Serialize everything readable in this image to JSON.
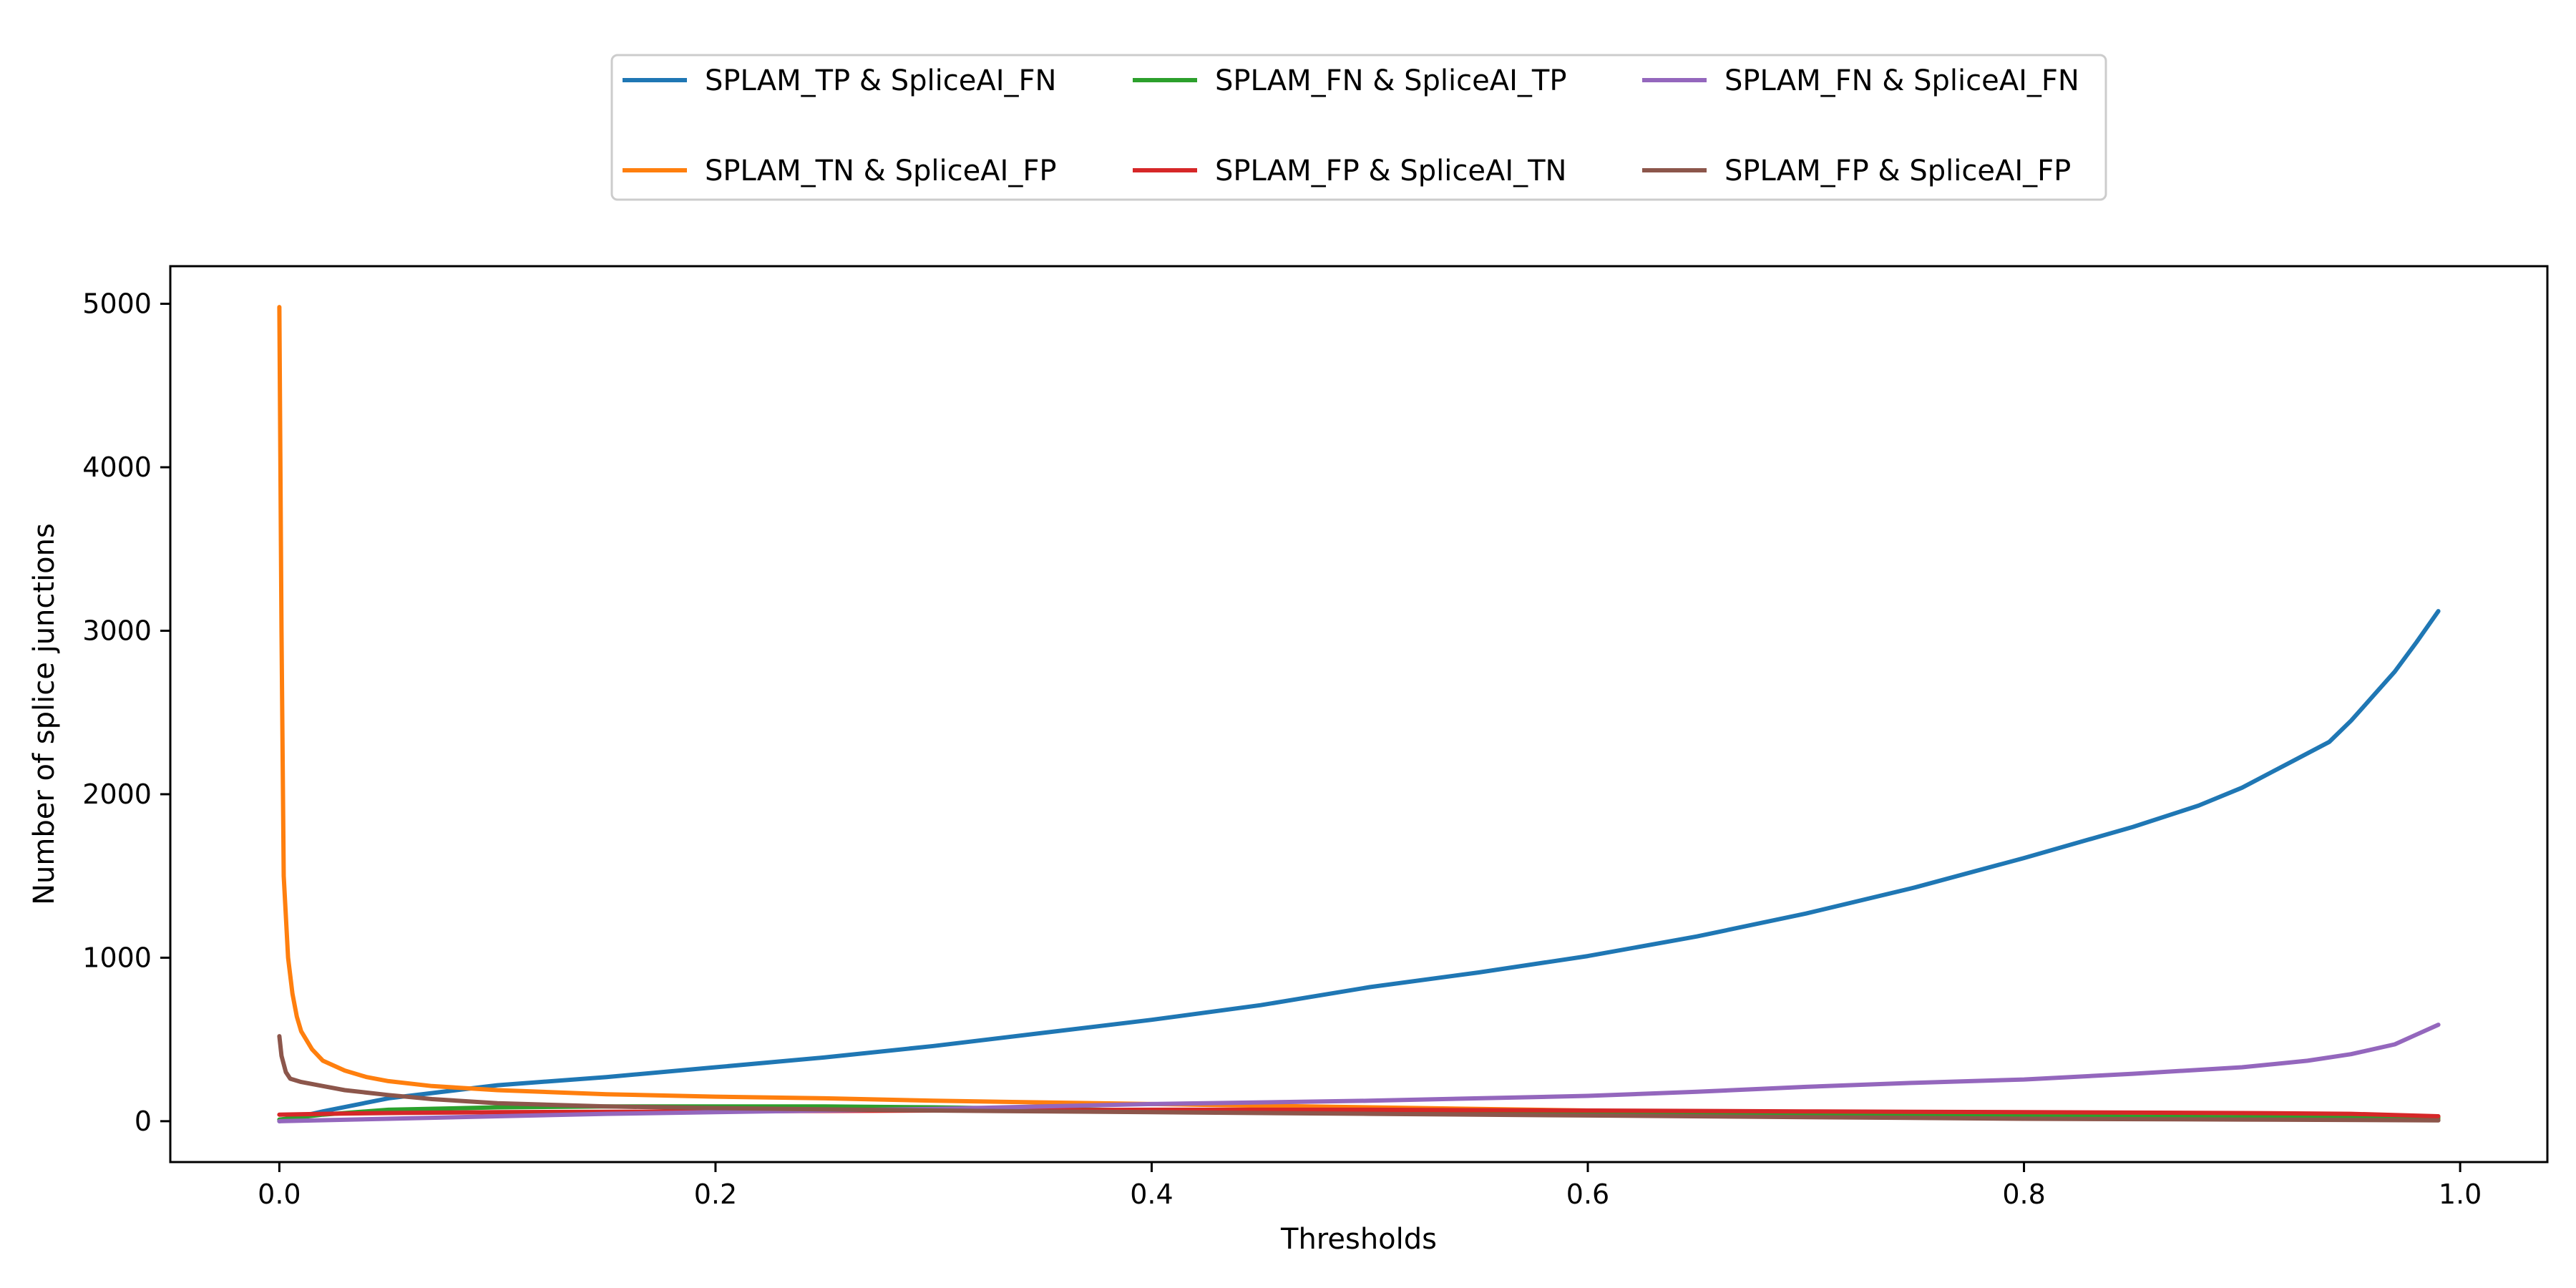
{
  "chart_data": {
    "type": "line",
    "title": "",
    "xlabel": "Thresholds",
    "ylabel": "Number of splice junctions",
    "xlim": [
      -0.05,
      1.04
    ],
    "ylim": [
      -250,
      5230
    ],
    "xticks": [
      0.0,
      0.2,
      0.4,
      0.6,
      0.8,
      1.0
    ],
    "xtick_labels": [
      "0.0",
      "0.2",
      "0.4",
      "0.6",
      "0.8",
      "1.0"
    ],
    "yticks": [
      0,
      1000,
      2000,
      3000,
      4000,
      5000
    ],
    "ytick_labels": [
      "0",
      "1000",
      "2000",
      "3000",
      "4000",
      "5000"
    ],
    "grid": false,
    "legend_position": "top-center, outside plot, 3 columns",
    "series": [
      {
        "name": "SPLAM_TP & SpliceAI_FN",
        "color": "#1f77b4",
        "x": [
          0.0,
          0.02,
          0.05,
          0.1,
          0.15,
          0.2,
          0.25,
          0.3,
          0.35,
          0.4,
          0.45,
          0.5,
          0.55,
          0.6,
          0.65,
          0.7,
          0.75,
          0.8,
          0.85,
          0.88,
          0.9,
          0.92,
          0.94,
          0.95,
          0.96,
          0.97,
          0.98,
          0.99
        ],
        "y": [
          0,
          60,
          140,
          220,
          270,
          330,
          390,
          460,
          540,
          620,
          710,
          820,
          910,
          1010,
          1130,
          1270,
          1430,
          1610,
          1800,
          1930,
          2040,
          2180,
          2320,
          2450,
          2600,
          2750,
          2930,
          3120
        ]
      },
      {
        "name": "SPLAM_TN & SpliceAI_FP",
        "color": "#ff7f0e",
        "x": [
          0.0,
          0.001,
          0.002,
          0.004,
          0.006,
          0.008,
          0.01,
          0.015,
          0.02,
          0.03,
          0.04,
          0.05,
          0.07,
          0.1,
          0.15,
          0.2,
          0.25,
          0.3,
          0.35,
          0.4,
          0.45,
          0.5,
          0.55,
          0.6,
          0.65,
          0.7,
          0.75,
          0.8,
          0.85,
          0.9,
          0.95,
          0.99
        ],
        "y": [
          4980,
          3000,
          1500,
          1000,
          780,
          640,
          550,
          440,
          370,
          310,
          270,
          245,
          215,
          190,
          165,
          150,
          140,
          125,
          115,
          105,
          95,
          85,
          75,
          65,
          55,
          45,
          38,
          30,
          25,
          20,
          15,
          10
        ]
      },
      {
        "name": "SPLAM_FN & SpliceAI_TP",
        "color": "#2ca02c",
        "x": [
          0.0,
          0.02,
          0.05,
          0.1,
          0.15,
          0.2,
          0.25,
          0.3,
          0.35,
          0.4,
          0.5,
          0.6,
          0.7,
          0.8,
          0.9,
          0.99
        ],
        "y": [
          10,
          40,
          70,
          85,
          90,
          90,
          90,
          85,
          75,
          65,
          55,
          45,
          35,
          30,
          25,
          20
        ]
      },
      {
        "name": "SPLAM_FP & SpliceAI_TN",
        "color": "#d62728",
        "x": [
          0.0,
          0.02,
          0.05,
          0.1,
          0.2,
          0.3,
          0.4,
          0.5,
          0.6,
          0.7,
          0.8,
          0.9,
          0.95,
          0.99
        ],
        "y": [
          40,
          45,
          50,
          55,
          60,
          65,
          70,
          70,
          65,
          60,
          55,
          50,
          45,
          30
        ]
      },
      {
        "name": "SPLAM_FN & SpliceAI_FN",
        "color": "#9467bd",
        "x": [
          0.0,
          0.05,
          0.1,
          0.15,
          0.2,
          0.25,
          0.3,
          0.35,
          0.4,
          0.45,
          0.5,
          0.55,
          0.6,
          0.65,
          0.7,
          0.75,
          0.8,
          0.85,
          0.9,
          0.93,
          0.95,
          0.97,
          0.98,
          0.99
        ],
        "y": [
          0,
          15,
          30,
          45,
          55,
          65,
          75,
          90,
          105,
          115,
          125,
          140,
          155,
          180,
          210,
          235,
          255,
          290,
          330,
          370,
          410,
          470,
          530,
          590
        ]
      },
      {
        "name": "SPLAM_FP & SpliceAI_FP",
        "color": "#8c564b",
        "x": [
          0.0,
          0.001,
          0.003,
          0.005,
          0.01,
          0.02,
          0.03,
          0.05,
          0.07,
          0.1,
          0.15,
          0.2,
          0.3,
          0.4,
          0.5,
          0.6,
          0.7,
          0.8,
          0.9,
          0.99
        ],
        "y": [
          520,
          400,
          300,
          260,
          240,
          215,
          190,
          160,
          135,
          110,
          90,
          80,
          65,
          55,
          45,
          35,
          25,
          15,
          10,
          5
        ]
      }
    ]
  }
}
